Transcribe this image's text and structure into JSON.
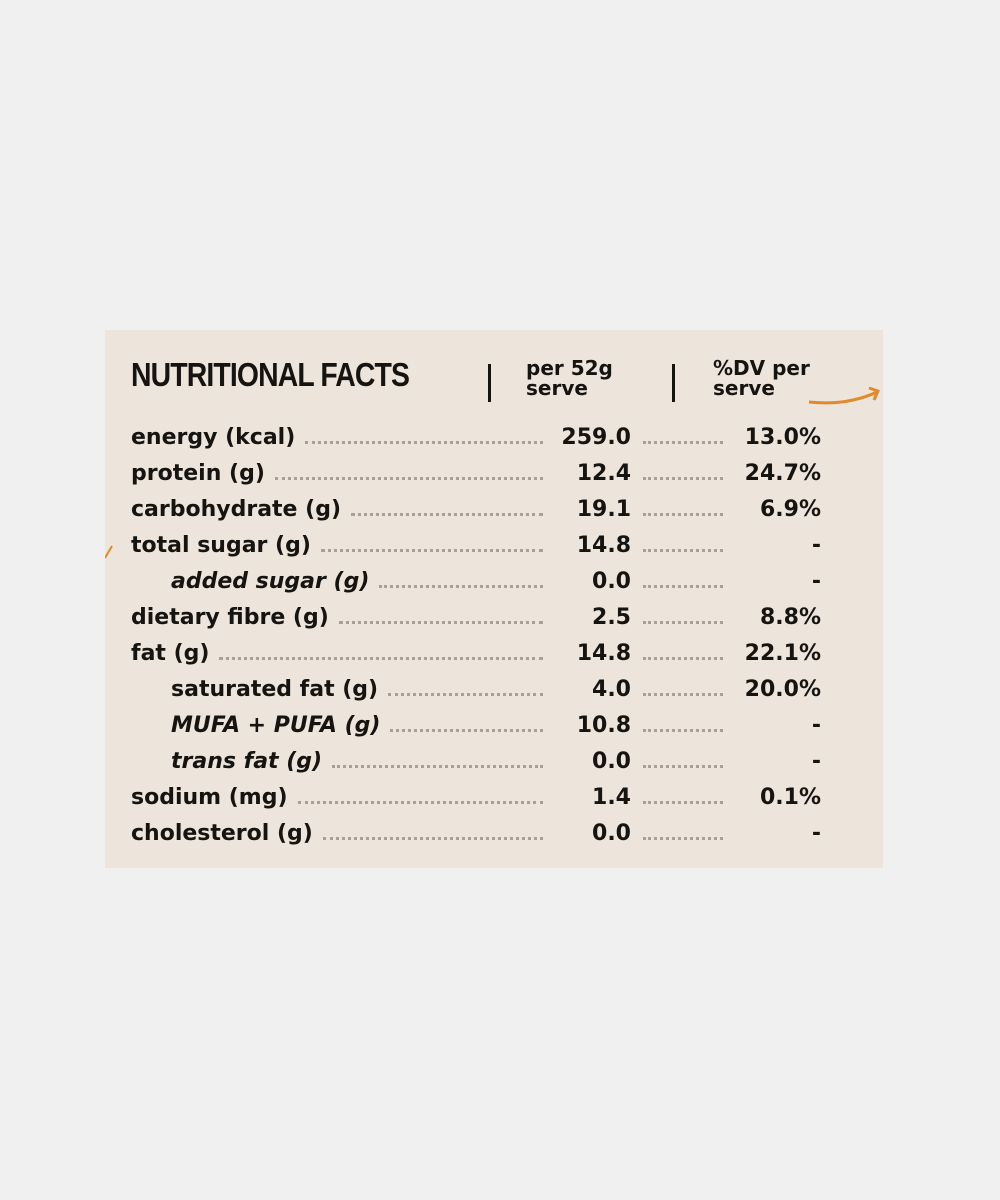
{
  "header": {
    "title": "NUTRITIONAL FACTS",
    "col1_line1": "per 52g",
    "col1_line2": "serve",
    "col2_line1": "%DV per",
    "col2_line2": "serve"
  },
  "colors": {
    "accent": "#e08a2a",
    "background": "#ede4dc",
    "text": "#161410"
  },
  "rows": [
    {
      "label": "energy (kcal)",
      "value": "259.0",
      "dv": "13.0%",
      "style": "main"
    },
    {
      "label": "protein (g)",
      "value": "12.4",
      "dv": "24.7%",
      "style": "main"
    },
    {
      "label": "carbohydrate (g)",
      "value": "19.1",
      "dv": "6.9%",
      "style": "main"
    },
    {
      "label": "total sugar (g)",
      "value": "14.8",
      "dv": "-",
      "style": "main"
    },
    {
      "label": "added sugar (g)",
      "value": "0.0",
      "dv": "-",
      "style": "sub"
    },
    {
      "label": "dietary fibre (g)",
      "value": "2.5",
      "dv": "8.8%",
      "style": "main"
    },
    {
      "label": "fat (g)",
      "value": "14.8",
      "dv": "22.1%",
      "style": "main"
    },
    {
      "label": "saturated fat (g)",
      "value": "4.0",
      "dv": "20.0%",
      "style": "sub2"
    },
    {
      "label": "MUFA + PUFA (g)",
      "value": "10.8",
      "dv": "-",
      "style": "sub"
    },
    {
      "label": "trans fat (g)",
      "value": "0.0",
      "dv": "-",
      "style": "sub"
    },
    {
      "label": "sodium (mg)",
      "value": "1.4",
      "dv": "0.1%",
      "style": "main"
    },
    {
      "label": "cholesterol (g)",
      "value": "0.0",
      "dv": "-",
      "style": "main"
    }
  ]
}
